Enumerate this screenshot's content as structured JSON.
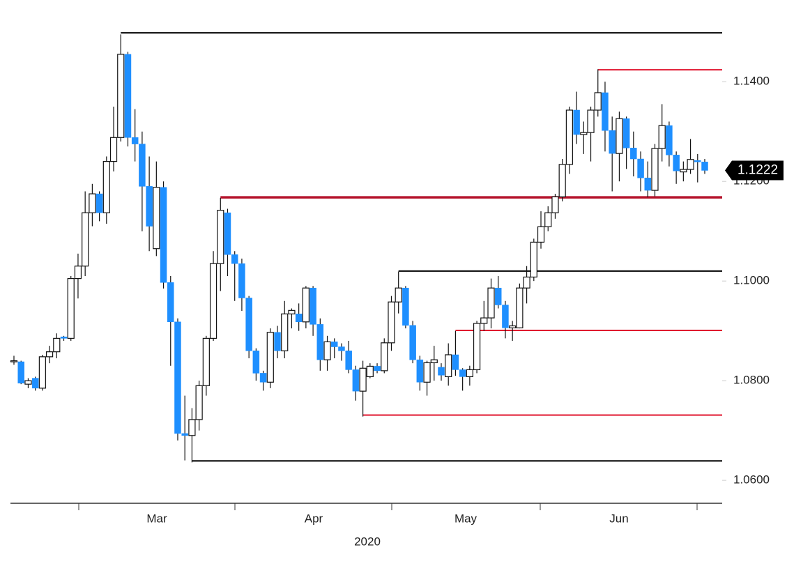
{
  "chart_data": {
    "type": "candlestick",
    "up_color": "#ffffff",
    "down_color": "#1e8fff",
    "ylim": [
      1.0554,
      1.1564
    ],
    "yticks": [
      {
        "value": 1.06,
        "label": "1.0600"
      },
      {
        "value": 1.08,
        "label": "1.0800"
      },
      {
        "value": 1.1,
        "label": "1.1000"
      },
      {
        "value": 1.12,
        "label": "1.1200"
      },
      {
        "value": 1.14,
        "label": "1.1400"
      }
    ],
    "x_labels": [
      "Mar",
      "Apr",
      "May",
      "Jun"
    ],
    "x_title": "2020",
    "last_price": {
      "value": 1.1222,
      "label": "1.1222"
    },
    "levels": [
      {
        "value": 1.1498,
        "color": "#000000"
      },
      {
        "value": 1.1424,
        "color": "#e0142e"
      },
      {
        "value": 1.1168,
        "color": "#b5122a"
      },
      {
        "value": 1.102,
        "color": "#000000"
      },
      {
        "value": 1.0901,
        "color": "#e0142e"
      },
      {
        "value": 1.0731,
        "color": "#e0142e"
      },
      {
        "value": 1.0639,
        "color": "#000000"
      }
    ],
    "open": [
      1.0838,
      1.0838,
      1.0793,
      1.0805,
      1.0785,
      1.0848,
      1.0858,
      1.0888,
      1.0885,
      1.1005,
      1.103,
      1.1137,
      1.1175,
      1.1137,
      1.124,
      1.1288,
      1.1455,
      1.1288,
      1.1275,
      1.119,
      1.1065,
      1.1188,
      1.0997,
      1.0918,
      1.0694,
      1.069,
      1.0722,
      1.079,
      1.0885,
      1.1035,
      1.1137,
      1.1053,
      1.1035,
      1.0966,
      1.086,
      1.0815,
      1.0797,
      1.0897,
      1.086,
      1.0934,
      1.0934,
      1.0918,
      1.0986,
      1.0913,
      1.0842,
      1.0878,
      1.0868,
      1.086,
      1.0822,
      1.0779,
      1.0808,
      1.0829,
      1.082,
      1.0876,
      1.0958,
      1.0986,
      1.0911,
      1.0842,
      1.0797,
      1.0836,
      1.0827,
      1.0808,
      1.0852,
      1.0822,
      1.0808,
      1.0822,
      1.0915,
      1.0926,
      1.0986,
      1.0952,
      1.0906,
      1.0906,
      1.0986,
      1.1008,
      1.1078,
      1.1109,
      1.1137,
      1.1169,
      1.1234,
      1.1343,
      1.1294,
      1.1298,
      1.1343,
      1.1378,
      1.1302,
      1.1256,
      1.1326,
      1.1267,
      1.1245,
      1.1207,
      1.1182,
      1.1266,
      1.1312,
      1.1253,
      1.1219,
      1.1224,
      1.1242,
      1.1239
    ],
    "high": [
      1.085,
      1.084,
      1.0805,
      1.0808,
      1.0852,
      1.087,
      1.0895,
      1.089,
      1.101,
      1.1055,
      1.118,
      1.1195,
      1.118,
      1.125,
      1.135,
      1.1495,
      1.146,
      1.1345,
      1.13,
      1.125,
      1.124,
      1.12,
      1.101,
      1.0925,
      1.077,
      1.0745,
      1.08,
      1.089,
      1.106,
      1.1167,
      1.1145,
      1.106,
      1.1045,
      1.097,
      1.0865,
      1.082,
      1.0905,
      1.091,
      1.096,
      1.0945,
      1.0955,
      1.099,
      1.099,
      1.0925,
      1.089,
      1.0885,
      1.0875,
      1.088,
      1.083,
      1.084,
      1.0835,
      1.0835,
      1.0885,
      1.097,
      1.1019,
      1.099,
      1.092,
      1.085,
      1.084,
      1.087,
      1.0835,
      1.0875,
      1.09,
      1.0825,
      1.083,
      1.092,
      1.096,
      1.1005,
      1.101,
      1.096,
      1.092,
      1.0995,
      1.103,
      1.1085,
      1.114,
      1.115,
      1.1175,
      1.1245,
      1.135,
      1.138,
      1.132,
      1.135,
      1.1425,
      1.14,
      1.133,
      1.134,
      1.133,
      1.13,
      1.126,
      1.124,
      1.1275,
      1.1355,
      1.132,
      1.126,
      1.124,
      1.1285,
      1.1255,
      1.1245
    ],
    "low": [
      1.0832,
      1.0793,
      1.0785,
      1.078,
      1.078,
      1.0835,
      1.0845,
      1.088,
      1.088,
      1.0965,
      1.101,
      1.111,
      1.112,
      1.1115,
      1.122,
      1.128,
      1.127,
      1.124,
      1.11,
      1.106,
      1.105,
      1.0985,
      1.083,
      1.068,
      1.064,
      1.0636,
      1.07,
      1.077,
      1.088,
      1.098,
      1.101,
      1.096,
      1.094,
      1.0845,
      1.08,
      1.078,
      1.0785,
      1.0845,
      1.0845,
      1.0905,
      1.09,
      1.0905,
      1.089,
      1.082,
      1.082,
      1.0845,
      1.084,
      1.0815,
      1.076,
      1.0728,
      1.0805,
      1.0815,
      1.0815,
      1.086,
      1.0935,
      1.0905,
      1.0835,
      1.078,
      1.077,
      1.08,
      1.08,
      1.079,
      1.081,
      1.078,
      1.079,
      1.0815,
      1.09,
      1.0905,
      1.0945,
      1.0885,
      1.088,
      1.0905,
      1.0955,
      1.1,
      1.1065,
      1.11,
      1.1125,
      1.116,
      1.1215,
      1.1275,
      1.1255,
      1.124,
      1.133,
      1.126,
      1.118,
      1.12,
      1.1225,
      1.121,
      1.118,
      1.1168,
      1.117,
      1.124,
      1.123,
      1.1195,
      1.12,
      1.1215,
      1.1198,
      1.1215
    ],
    "close": [
      1.084,
      1.0795,
      1.08,
      1.0785,
      1.0848,
      1.0858,
      1.0885,
      1.0885,
      1.1005,
      1.103,
      1.1137,
      1.1175,
      1.1137,
      1.124,
      1.1288,
      1.1455,
      1.1288,
      1.1275,
      1.119,
      1.111,
      1.1188,
      1.0997,
      1.0918,
      1.0694,
      1.069,
      1.0722,
      1.079,
      1.0885,
      1.1035,
      1.1142,
      1.1053,
      1.1035,
      1.0966,
      1.086,
      1.0815,
      1.0797,
      1.0897,
      1.086,
      1.0934,
      1.0941,
      1.0918,
      1.0986,
      1.0913,
      1.0842,
      1.0878,
      1.0868,
      1.086,
      1.0822,
      1.0779,
      1.0825,
      1.0829,
      1.082,
      1.0876,
      1.0958,
      1.0986,
      1.0911,
      1.0842,
      1.0797,
      1.0836,
      1.0842,
      1.0811,
      1.0852,
      1.0822,
      1.0808,
      1.0822,
      1.0915,
      1.0926,
      1.0986,
      1.0952,
      1.0906,
      1.091,
      1.0986,
      1.1008,
      1.1078,
      1.1109,
      1.1137,
      1.1169,
      1.1234,
      1.1343,
      1.1294,
      1.1298,
      1.1343,
      1.1378,
      1.1302,
      1.1256,
      1.1326,
      1.1267,
      1.1245,
      1.1207,
      1.1182,
      1.1266,
      1.1312,
      1.1253,
      1.1221,
      1.1224,
      1.1244,
      1.1239,
      1.1222
    ]
  }
}
